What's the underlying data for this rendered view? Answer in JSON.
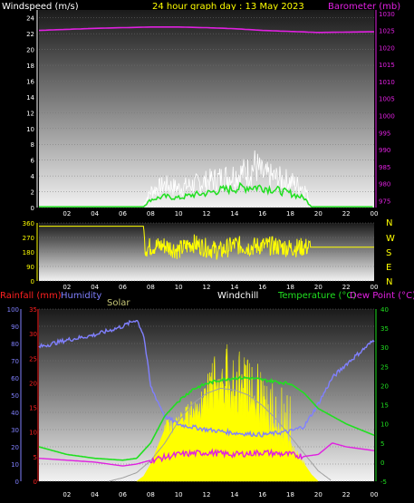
{
  "header": {
    "windspeed_label": "Windspeed (m/s)",
    "title": "24 hour graph day : 13 May 2023",
    "barometer_label": "Barometer (mb)"
  },
  "panel2": {
    "compass_labels": [
      "N",
      "W",
      "S",
      "E",
      "N"
    ]
  },
  "panel3": {
    "rainfall_label": "Rainfall (mm)",
    "humidity_label": "Humidity",
    "solar_label": "Solar",
    "windchill_label": "Windchill",
    "temperature_label": "Temperature (°C)",
    "dewpoint_label": "Dew Point (°C)"
  },
  "colors": {
    "barometer": "#e020e0",
    "wind": "#ffffff",
    "wind_avg": "#20e020",
    "direction": "#ffff00",
    "temperature": "#20e020",
    "humidity": "#8080ff",
    "dewpoint": "#e020e0",
    "solar": "#ffff00",
    "rainfall_axis": "#ff2020"
  },
  "chart_data": [
    {
      "type": "line",
      "x_ticks": [
        "02",
        "04",
        "06",
        "08",
        "10",
        "12",
        "14",
        "16",
        "18",
        "20",
        "22",
        "00"
      ],
      "left_axis": {
        "ticks": [
          0,
          2,
          4,
          6,
          8,
          10,
          12,
          14,
          16,
          18,
          20,
          22,
          24
        ],
        "range": [
          0,
          25
        ]
      },
      "right_axis": {
        "ticks": [
          975,
          980,
          985,
          990,
          995,
          1000,
          1005,
          1010,
          1015,
          1020,
          1025,
          1030
        ],
        "range": [
          973,
          1031
        ]
      },
      "series": [
        {
          "key": "barometer",
          "axis": "right",
          "x": [
            0,
            2,
            4,
            6,
            8,
            10,
            12,
            14,
            16,
            18,
            20,
            22,
            24
          ],
          "values": [
            1025.0,
            1025.3,
            1025.6,
            1025.8,
            1026.0,
            1026.0,
            1025.8,
            1025.5,
            1025.0,
            1024.7,
            1024.4,
            1024.5,
            1024.6
          ]
        },
        {
          "key": "wind_gust",
          "axis": "left",
          "x": [
            7.5,
            8,
            9,
            10,
            11,
            12,
            13,
            14,
            15,
            15.5,
            16,
            17,
            18,
            19,
            19.5
          ],
          "values": [
            0.5,
            2.5,
            3.5,
            3.0,
            3.5,
            4.0,
            4.5,
            5.0,
            5.5,
            6.5,
            5.0,
            4.5,
            4.0,
            3.0,
            0.5
          ]
        },
        {
          "key": "wind_avg",
          "axis": "left",
          "x": [
            0,
            7.5,
            8,
            9,
            10,
            11,
            12,
            13,
            14,
            15,
            16,
            17,
            18,
            19,
            19.5,
            24
          ],
          "values": [
            0.1,
            0.1,
            1.0,
            1.4,
            1.2,
            1.6,
            1.8,
            2.2,
            2.4,
            2.6,
            2.6,
            2.2,
            1.8,
            1.2,
            0.1,
            0.1
          ]
        }
      ]
    },
    {
      "type": "line",
      "x_ticks": [
        "02",
        "04",
        "06",
        "08",
        "10",
        "12",
        "14",
        "16",
        "18",
        "20",
        "22",
        "00"
      ],
      "left_axis": {
        "ticks": [
          0,
          90,
          180,
          270,
          360
        ],
        "range": [
          0,
          360
        ]
      },
      "series": [
        {
          "key": "direction",
          "x": [
            0,
            7.5,
            7.6,
            8,
            9,
            10,
            11,
            12,
            13,
            14,
            15,
            16,
            17,
            18,
            19,
            19.5,
            24
          ],
          "values": [
            340,
            340,
            200,
            215,
            220,
            190,
            235,
            205,
            185,
            225,
            210,
            220,
            215,
            205,
            210,
            210,
            210
          ]
        }
      ]
    },
    {
      "type": "line",
      "x_ticks": [
        "02",
        "04",
        "06",
        "08",
        "10",
        "12",
        "14",
        "16",
        "18",
        "20",
        "22",
        "00"
      ],
      "humidity_axis": {
        "ticks": [
          0,
          10,
          20,
          30,
          40,
          50,
          60,
          70,
          80,
          90,
          100
        ],
        "range": [
          0,
          100
        ]
      },
      "rainfall_axis": {
        "ticks": [
          0,
          5,
          10,
          15,
          20,
          25,
          30,
          35
        ],
        "range": [
          0,
          35
        ]
      },
      "temperature_axis": {
        "ticks": [
          -5,
          0,
          5,
          10,
          15,
          20,
          25,
          30,
          35,
          40
        ],
        "range": [
          -5,
          40
        ]
      },
      "series": [
        {
          "key": "humidity",
          "axis": "humidity",
          "x": [
            0,
            2,
            4,
            6,
            7,
            7.5,
            8,
            9,
            10,
            12,
            14,
            16,
            18,
            19,
            20,
            21,
            22,
            23,
            24
          ],
          "values": [
            78,
            82,
            85,
            90,
            94,
            85,
            55,
            38,
            33,
            30,
            28,
            27,
            29,
            32,
            45,
            60,
            68,
            75,
            82
          ]
        },
        {
          "key": "temperature",
          "axis": "temperature",
          "x": [
            0,
            2,
            4,
            6,
            7,
            8,
            9,
            10,
            11,
            12,
            13,
            14,
            15,
            16,
            17,
            18,
            19,
            20,
            22,
            24
          ],
          "values": [
            4,
            2,
            1,
            0.5,
            1,
            5,
            12,
            16,
            19,
            20.5,
            21.5,
            22,
            22,
            21.5,
            21,
            20.5,
            18,
            14,
            10,
            7
          ]
        },
        {
          "key": "dewpoint",
          "axis": "temperature",
          "x": [
            0,
            2,
            4,
            6,
            7,
            8,
            10,
            12,
            14,
            16,
            18,
            19,
            20,
            21,
            22,
            24
          ],
          "values": [
            1,
            0.5,
            0,
            -1,
            -0.5,
            0.5,
            2,
            2.5,
            2,
            2.5,
            2,
            1.5,
            2,
            5,
            4,
            3
          ]
        },
        {
          "key": "solar_curve",
          "axis": "humidity",
          "x": [
            5,
            6,
            7,
            8,
            9,
            10,
            11,
            12,
            13,
            14,
            15,
            16,
            17,
            18,
            19,
            20,
            21
          ],
          "values": [
            0,
            2,
            5,
            12,
            22,
            35,
            45,
            51,
            54,
            53,
            50,
            44,
            36,
            26,
            16,
            6,
            0
          ]
        },
        {
          "key": "solar",
          "axis": "humidity",
          "x": [
            7,
            7.5,
            8,
            8.5,
            9,
            10,
            11,
            12,
            12.5,
            13,
            13.5,
            14,
            14.5,
            15,
            15.5,
            16,
            16.5,
            17,
            17.5,
            18,
            18.5,
            19,
            19.5,
            20
          ],
          "values": [
            0,
            3,
            10,
            20,
            30,
            33,
            40,
            46,
            50,
            52,
            50,
            45,
            48,
            42,
            40,
            36,
            30,
            28,
            24,
            20,
            15,
            10,
            4,
            0
          ]
        }
      ]
    }
  ]
}
